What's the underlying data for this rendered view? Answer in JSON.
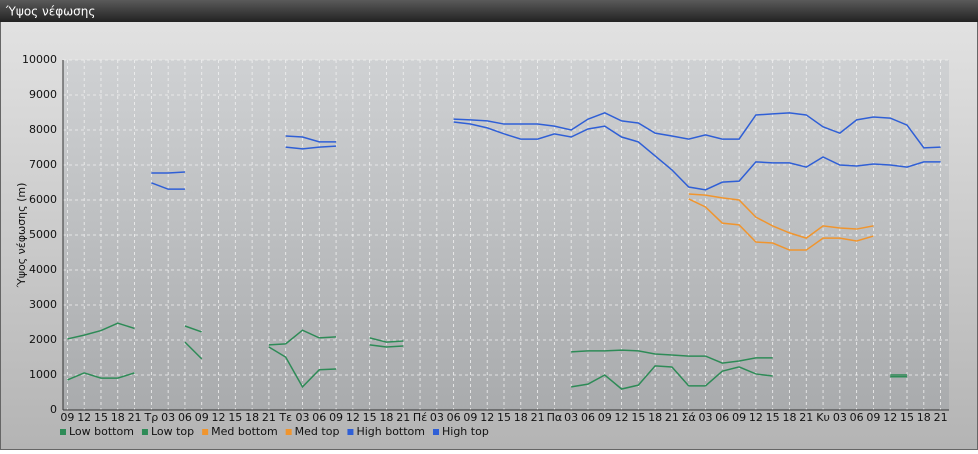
{
  "chart_data": {
    "type": "line",
    "title": "Ύψος νέφωσης",
    "y_label": "Ύψος νέφωσης (m)",
    "categories": [
      "09",
      "12",
      "15",
      "18",
      "21",
      "Τρ",
      "03",
      "06",
      "09",
      "12",
      "15",
      "18",
      "21",
      "Τε",
      "03",
      "06",
      "09",
      "12",
      "15",
      "18",
      "21",
      "Πέ",
      "03",
      "06",
      "09",
      "12",
      "15",
      "18",
      "21",
      "Πα",
      "03",
      "06",
      "09",
      "12",
      "15",
      "18",
      "21",
      "Σά",
      "03",
      "06",
      "09",
      "12",
      "15",
      "18",
      "21",
      "Κυ",
      "03",
      "06",
      "09",
      "12",
      "15",
      "18",
      "21"
    ],
    "ylim": [
      0,
      10000
    ],
    "yticks": [
      0,
      1000,
      2000,
      3000,
      4000,
      5000,
      6000,
      7000,
      8000,
      9000,
      10000
    ],
    "grid": true,
    "series": [
      {
        "name": "Low bottom",
        "color": "#2e8b57",
        "values": [
          860,
          1060,
          910,
          910,
          1060,
          null,
          null,
          1940,
          1460,
          null,
          null,
          null,
          1800,
          1510,
          660,
          1150,
          1170,
          null,
          1860,
          1800,
          1830,
          null,
          null,
          null,
          null,
          null,
          null,
          null,
          null,
          null,
          660,
          740,
          1000,
          600,
          710,
          1260,
          1230,
          690,
          690,
          1110,
          1230,
          1030,
          970,
          null,
          null,
          null,
          null,
          null,
          null,
          950,
          950,
          null,
          null
        ]
      },
      {
        "name": "Low top",
        "color": "#2e8b57",
        "values": [
          2030,
          2140,
          2270,
          2480,
          2330,
          null,
          null,
          2400,
          2230,
          null,
          null,
          null,
          1860,
          1890,
          2280,
          2060,
          2090,
          null,
          2060,
          1940,
          1970,
          null,
          null,
          null,
          null,
          null,
          null,
          null,
          null,
          null,
          1660,
          1690,
          1690,
          1710,
          1690,
          1600,
          1570,
          1540,
          1540,
          1340,
          1400,
          1490,
          1490,
          null,
          null,
          null,
          null,
          null,
          null,
          1000,
          1000,
          null,
          null
        ]
      },
      {
        "name": "Med bottom",
        "color": "#f0952e",
        "values": [
          null,
          null,
          null,
          null,
          null,
          null,
          null,
          null,
          null,
          null,
          null,
          null,
          null,
          null,
          null,
          null,
          null,
          null,
          null,
          null,
          null,
          null,
          null,
          null,
          null,
          null,
          null,
          null,
          null,
          null,
          null,
          null,
          null,
          null,
          null,
          null,
          null,
          6030,
          5800,
          5340,
          5290,
          4800,
          4770,
          4570,
          4570,
          4910,
          4910,
          4830,
          4970,
          null,
          null,
          null,
          null
        ]
      },
      {
        "name": "Med top",
        "color": "#f0952e",
        "values": [
          null,
          null,
          null,
          null,
          null,
          null,
          null,
          null,
          null,
          null,
          null,
          null,
          null,
          null,
          null,
          null,
          null,
          null,
          null,
          null,
          null,
          null,
          null,
          null,
          null,
          null,
          null,
          null,
          null,
          null,
          null,
          null,
          null,
          null,
          null,
          null,
          null,
          6170,
          6140,
          6060,
          6000,
          5510,
          5260,
          5060,
          4910,
          5260,
          5200,
          5170,
          5260,
          null,
          null,
          null,
          null
        ]
      },
      {
        "name": "High bottom",
        "color": "#2f5fd6",
        "values": [
          null,
          null,
          null,
          null,
          null,
          6490,
          6310,
          6310,
          null,
          null,
          null,
          null,
          null,
          7510,
          7460,
          7510,
          7540,
          null,
          null,
          null,
          null,
          null,
          null,
          8230,
          8170,
          8060,
          7890,
          7740,
          7740,
          7890,
          7800,
          8030,
          8110,
          7800,
          7660,
          7260,
          6860,
          6370,
          6290,
          6510,
          6540,
          7090,
          7060,
          7060,
          6940,
          7230,
          7000,
          6970,
          7030,
          7000,
          6940,
          7090,
          7090
        ]
      },
      {
        "name": "High top",
        "color": "#2f5fd6",
        "values": [
          null,
          null,
          null,
          null,
          null,
          6770,
          6770,
          6800,
          null,
          null,
          null,
          null,
          null,
          7830,
          7800,
          7660,
          7660,
          null,
          null,
          null,
          null,
          null,
          null,
          8310,
          8290,
          8260,
          8170,
          8170,
          8170,
          8110,
          8000,
          8310,
          8490,
          8260,
          8200,
          7910,
          7830,
          7740,
          7860,
          7740,
          7740,
          8430,
          8460,
          8490,
          8430,
          8090,
          7910,
          8290,
          8370,
          8340,
          8140,
          7490,
          7510
        ]
      }
    ]
  }
}
